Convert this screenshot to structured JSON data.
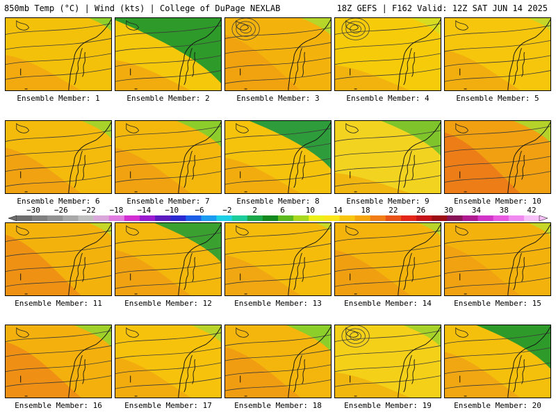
{
  "header": {
    "left": "850mb Temp (°C) | Wind (kts) | College of DuPage NEXLAB",
    "right": "18Z GEFS | F162 Valid: 12Z SAT JUN 14 2025"
  },
  "caption_prefix": "Ensemble Member: ",
  "members": [
    {
      "id": "1",
      "north": "#8fcf2a",
      "main": "#f3c10a",
      "warm": "#f2a70e",
      "green": 0.15,
      "warmth": 0.35,
      "low": false
    },
    {
      "id": "2",
      "north": "#2e9a2a",
      "main": "#f6c80c",
      "warm": "#f2a80e",
      "green": 0.75,
      "warmth": 0.3,
      "low": false
    },
    {
      "id": "3",
      "north": "#b6d62a",
      "main": "#f4b20c",
      "warm": "#f0a010",
      "green": 0.2,
      "warmth": 0.55,
      "low": true
    },
    {
      "id": "4",
      "north": "#d8dc20",
      "main": "#f6cc0a",
      "warm": "#f2b00e",
      "green": 0.2,
      "warmth": 0.25,
      "low": true
    },
    {
      "id": "5",
      "north": "#c4d628",
      "main": "#f6c60c",
      "warm": "#f2aa0e",
      "green": 0.15,
      "warmth": 0.4,
      "low": false
    },
    {
      "id": "6",
      "north": "#a6d22a",
      "main": "#f4ba0c",
      "warm": "#f0a012",
      "green": 0.2,
      "warmth": 0.45,
      "low": false
    },
    {
      "id": "7",
      "north": "#8ccd2c",
      "main": "#f4b80c",
      "warm": "#f0a012",
      "green": 0.3,
      "warmth": 0.45,
      "low": false
    },
    {
      "id": "8",
      "north": "#2e9c3a",
      "main": "#f5c20c",
      "warm": "#f2aa0e",
      "green": 0.55,
      "warmth": 0.35,
      "low": false
    },
    {
      "id": "9",
      "north": "#7ec42a",
      "main": "#f2d420",
      "warm": "#f2b20e",
      "green": 0.4,
      "warmth": 0.2,
      "low": false
    },
    {
      "id": "10",
      "north": "#b4d22a",
      "main": "#f0a010",
      "warm": "#ec7a18",
      "green": 0.25,
      "warmth": 0.6,
      "low": false
    },
    {
      "id": "11",
      "north": "#c4d628",
      "main": "#f4b20c",
      "warm": "#ee8e14",
      "green": 0.15,
      "warmth": 0.6,
      "low": false
    },
    {
      "id": "12",
      "north": "#3aa030",
      "main": "#f4b80c",
      "warm": "#f0a012",
      "green": 0.45,
      "warmth": 0.45,
      "low": false
    },
    {
      "id": "13",
      "north": "#c8d828",
      "main": "#f5bc0c",
      "warm": "#f0a412",
      "green": 0.1,
      "warmth": 0.4,
      "low": false
    },
    {
      "id": "14",
      "north": "#b8d42a",
      "main": "#f4b40c",
      "warm": "#f09c12",
      "green": 0.15,
      "warmth": 0.45,
      "low": false
    },
    {
      "id": "15",
      "north": "#c6d628",
      "main": "#f4b20c",
      "warm": "#f0a012",
      "green": 0.15,
      "warmth": 0.5,
      "low": false
    },
    {
      "id": "16",
      "north": "#a0d02a",
      "main": "#f4b00c",
      "warm": "#ee8c14",
      "green": 0.25,
      "warmth": 0.55,
      "low": false
    },
    {
      "id": "17",
      "north": "#b8d42a",
      "main": "#f6c20c",
      "warm": "#f2aa0e",
      "green": 0.2,
      "warmth": 0.4,
      "low": false
    },
    {
      "id": "18",
      "north": "#8cce2a",
      "main": "#f4b60c",
      "warm": "#ef9a12",
      "green": 0.3,
      "warmth": 0.5,
      "low": false
    },
    {
      "id": "19",
      "north": "#a6d22a",
      "main": "#f4d018",
      "warm": "#f2b40e",
      "green": 0.25,
      "warmth": 0.25,
      "low": true
    },
    {
      "id": "20",
      "north": "#2e9a2a",
      "main": "#f5c00c",
      "warm": "#f0a412",
      "green": 0.5,
      "warmth": 0.45,
      "low": false
    }
  ],
  "colorbar": {
    "labels": [
      "−30",
      "−26",
      "−22",
      "−18",
      "−14",
      "−10",
      "−6",
      "−2",
      "2",
      "6",
      "10",
      "14",
      "18",
      "22",
      "26",
      "30",
      "34",
      "38",
      "42"
    ],
    "colors": [
      "#6e6e6e",
      "#808080",
      "#929292",
      "#a8a8a8",
      "#c0c0c0",
      "#d9a7d9",
      "#e07be0",
      "#d22fd2",
      "#9a1ad0",
      "#5a1ac0",
      "#2a2ad0",
      "#1c5ee8",
      "#1b9cf0",
      "#1dd0e6",
      "#1ccc9a",
      "#1aa84a",
      "#148a1e",
      "#5cba1e",
      "#a8d820",
      "#eef01a",
      "#fbe51b",
      "#f8c60f",
      "#f5a60e",
      "#f07d16",
      "#e85418",
      "#e2261a",
      "#c4141a",
      "#9c0e14",
      "#881458",
      "#b01a90",
      "#d234c8",
      "#e85ae0",
      "#f08af0",
      "#f8c0f8"
    ]
  }
}
